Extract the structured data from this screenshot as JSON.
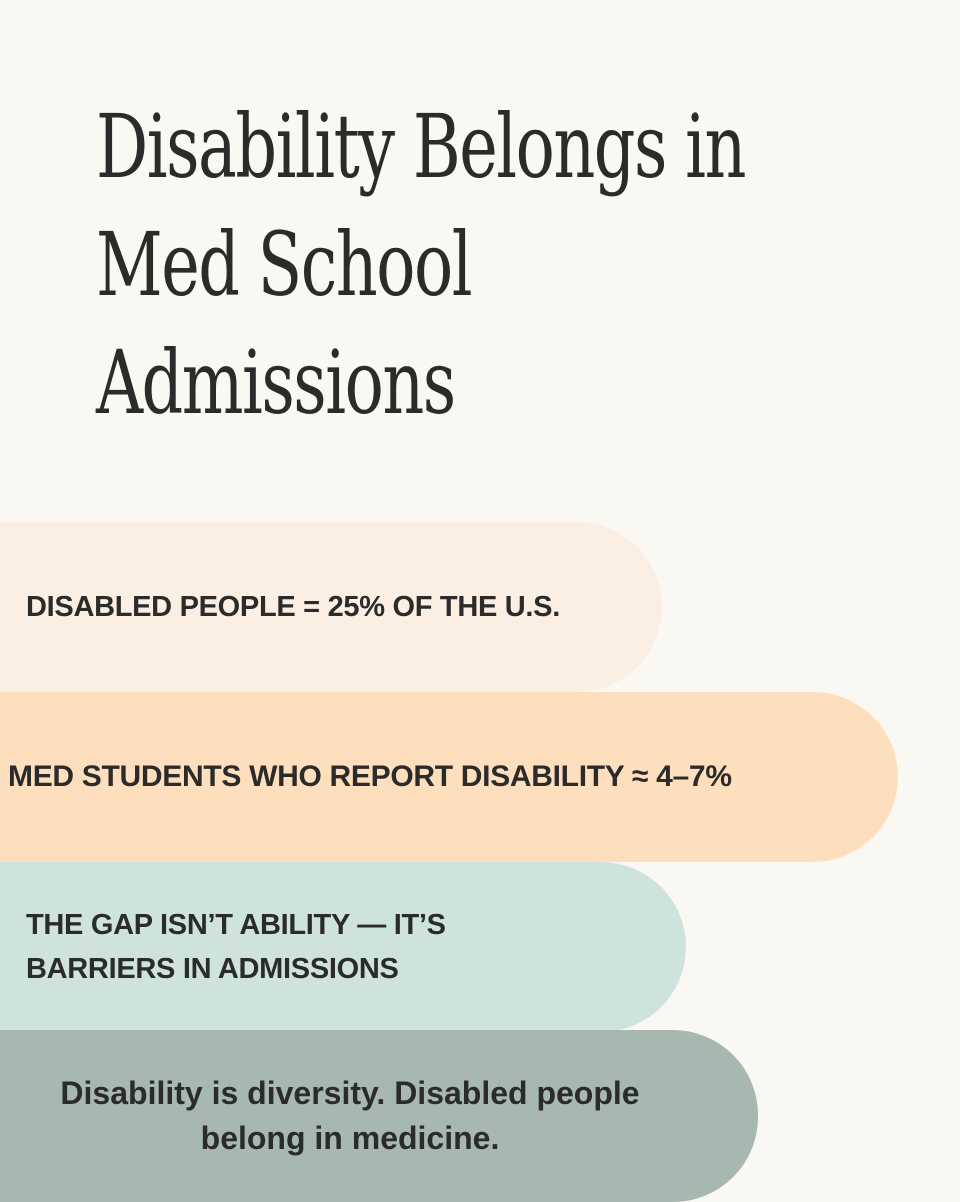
{
  "title": {
    "line1": "Disability Belongs in",
    "line2": "Med School",
    "line3": "Admissions"
  },
  "cards": [
    {
      "lines": [
        "DISABLED PEOPLE = 25% OF THE U.S."
      ],
      "color": "#fbeee3"
    },
    {
      "lines": [
        "MED STUDENTS WHO REPORT DISABILITY ≈ 4–7%"
      ],
      "color": "#fddfbe"
    },
    {
      "lines": [
        "THE GAP ISN’T ABILITY — IT’S",
        "BARRIERS IN ADMISSIONS"
      ],
      "color": "#cfe3dd"
    },
    {
      "lines": [
        "Disability is diversity. Disabled people",
        "belong in medicine."
      ],
      "color": "#a7b8b0"
    }
  ],
  "colors": {
    "background": "#f9f8f3",
    "text": "#2b2b2b"
  }
}
